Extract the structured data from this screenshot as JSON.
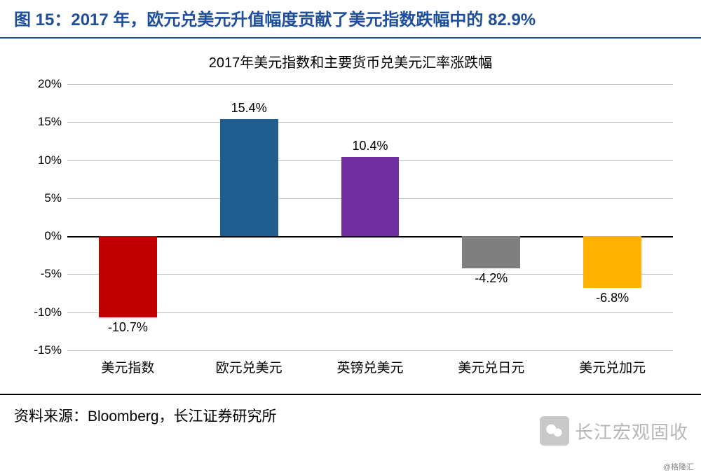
{
  "header": {
    "title": "图 15：2017 年，欧元兑美元升值幅度贡献了美元指数跌幅中的 82.9%",
    "title_color": "#1f4e9c",
    "rule_color": "#1f4e9c"
  },
  "chart": {
    "type": "bar",
    "title": "2017年美元指数和主要货币兑美元汇率涨跌幅",
    "title_fontsize": 20,
    "background_color": "#ffffff",
    "ylim": [
      -15,
      20
    ],
    "ytick_step": 5,
    "yticks": [
      "-15%",
      "-10%",
      "-5%",
      "0%",
      "5%",
      "10%",
      "15%",
      "20%"
    ],
    "ytick_values": [
      -15,
      -10,
      -5,
      0,
      5,
      10,
      15,
      20
    ],
    "grid_color": "#bfbfbf",
    "zero_line_color": "#000000",
    "categories": [
      "美元指数",
      "欧元兑美元",
      "英镑兑美元",
      "美元兑日元",
      "美元兑加元"
    ],
    "values": [
      -10.7,
      15.4,
      10.4,
      -4.2,
      -6.8
    ],
    "value_labels": [
      "-10.7%",
      "15.4%",
      "10.4%",
      "-4.2%",
      "-6.8%"
    ],
    "bar_colors": [
      "#c00000",
      "#1f5e8e",
      "#7030a0",
      "#7f7f7f",
      "#ffb000"
    ],
    "bar_width": 0.48,
    "label_fontsize": 18,
    "xcat_fontsize": 19,
    "ytick_fontsize": 17
  },
  "source": {
    "label": "资料来源：Bloomberg，长江证券研究所",
    "rule_color": "#000000"
  },
  "watermark": {
    "text": "长江宏观固收",
    "icon_bg": "#666666",
    "text_color": "#333333"
  },
  "corner_tag": "@格隆汇"
}
